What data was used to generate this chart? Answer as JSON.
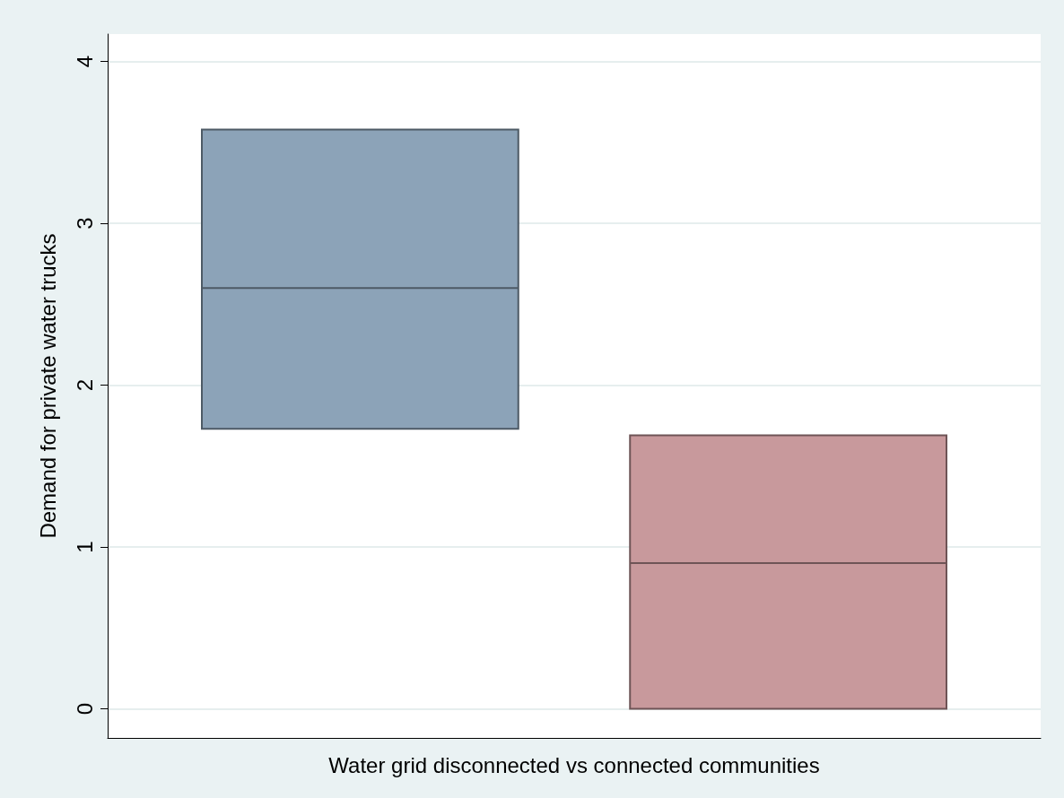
{
  "chart_data": {
    "type": "box",
    "xlabel": "Water grid disconnected vs connected communities",
    "ylabel": "Demand for private water trucks",
    "categories": [
      null
    ],
    "series": [
      {
        "color": "#8ca3b8",
        "boxes": [
          {
            "low": 1.73,
            "q1": 1.73,
            "median": 2.6,
            "q3": 3.58,
            "high": 3.58
          }
        ]
      },
      {
        "color": "#c8999c",
        "boxes": [
          {
            "low": 0,
            "q1": 0,
            "median": 0.9,
            "q3": 1.69,
            "high": 1.69
          }
        ]
      }
    ],
    "ylim": [
      -0.18,
      4.17
    ],
    "yticks": [
      0,
      1,
      2,
      3,
      4
    ],
    "grid": "y"
  }
}
